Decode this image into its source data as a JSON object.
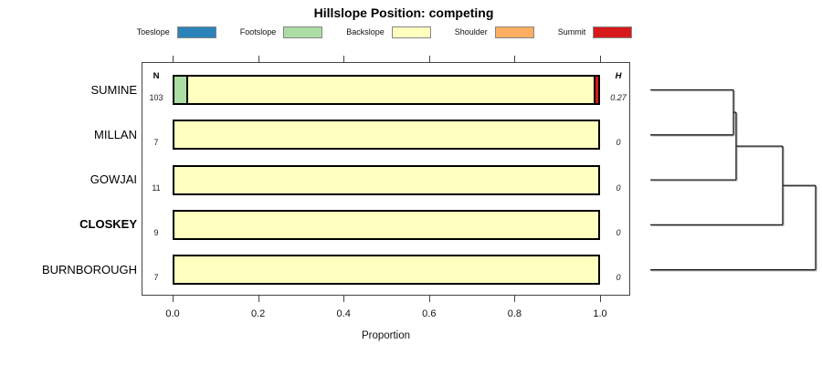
{
  "chart_data": {
    "type": "bar",
    "orientation": "horizontal-stacked",
    "title": "Hillslope Position: competing",
    "xlabel": "Proportion",
    "xlim": [
      0,
      1
    ],
    "xticks": [
      "0.0",
      "0.2",
      "0.4",
      "0.6",
      "0.8",
      "1.0"
    ],
    "grid": false,
    "legend_position": "top",
    "legend": [
      {
        "label": "Toeslope",
        "color": "#2b83ba"
      },
      {
        "label": "Footslope",
        "color": "#abdda4"
      },
      {
        "label": "Backslope",
        "color": "#ffffbf"
      },
      {
        "label": "Shoulder",
        "color": "#fdae61"
      },
      {
        "label": "Summit",
        "color": "#d7191c"
      }
    ],
    "columns": {
      "left_header": "N",
      "right_header": "H"
    },
    "rows": [
      {
        "name": "SUMINE",
        "bold": false,
        "n": "103",
        "h": "0.27",
        "segments": [
          {
            "category": "Footslope",
            "value": 0.029
          },
          {
            "category": "Backslope",
            "value": 0.961
          },
          {
            "category": "Summit",
            "value": 0.01
          }
        ]
      },
      {
        "name": "MILLAN",
        "bold": false,
        "n": "7",
        "h": "0",
        "segments": [
          {
            "category": "Backslope",
            "value": 1.0
          }
        ]
      },
      {
        "name": "GOWJAI",
        "bold": false,
        "n": "11",
        "h": "0",
        "segments": [
          {
            "category": "Backslope",
            "value": 1.0
          }
        ]
      },
      {
        "name": "CLOSKEY",
        "bold": true,
        "n": "9",
        "h": "0",
        "segments": [
          {
            "category": "Backslope",
            "value": 1.0
          }
        ]
      },
      {
        "name": "BURNBOROUGH",
        "bold": false,
        "n": "7",
        "h": "0",
        "segments": [
          {
            "category": "Backslope",
            "value": 1.0
          }
        ]
      }
    ],
    "dendrogram": {
      "orientation": "right",
      "merges": [
        {
          "children": [
            "leaf:0",
            "leaf:1"
          ],
          "height": 0.503
        },
        {
          "children": [
            "merge:0",
            "leaf:2"
          ],
          "height": 0.519
        },
        {
          "children": [
            "merge:1",
            "leaf:3"
          ],
          "height": 0.801
        },
        {
          "children": [
            "merge:2",
            "leaf:4"
          ],
          "height": 1.0
        }
      ]
    }
  }
}
